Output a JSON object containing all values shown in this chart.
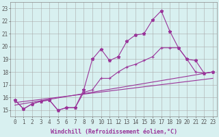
{
  "x_values": [
    0,
    1,
    2,
    3,
    4,
    5,
    6,
    7,
    8,
    9,
    10,
    11,
    12,
    13,
    14,
    15,
    16,
    17,
    18,
    19,
    20,
    21,
    22,
    23
  ],
  "series1": [
    15.8,
    15.1,
    15.5,
    15.7,
    15.8,
    15.0,
    15.2,
    15.2,
    16.6,
    19.0,
    19.8,
    18.9,
    19.2,
    20.4,
    20.9,
    21.0,
    22.1,
    22.8,
    21.2,
    19.9,
    19.0,
    18.9,
    17.9,
    18.0
  ],
  "series2": [
    15.8,
    15.1,
    15.5,
    15.7,
    15.8,
    15.0,
    15.2,
    15.2,
    16.4,
    16.6,
    17.5,
    17.5,
    18.0,
    18.4,
    18.6,
    18.9,
    19.2,
    19.9,
    19.9,
    19.9,
    19.0,
    18.0,
    17.9,
    18.0
  ],
  "series3_x": [
    0,
    23
  ],
  "series3_y": [
    15.4,
    18.0
  ],
  "series4_x": [
    0,
    23
  ],
  "series4_y": [
    15.6,
    17.5
  ],
  "line_color": "#993399",
  "bg_color": "#d8f0f0",
  "plot_bg": "#d8f0f0",
  "grid_color": "#aaaaaa",
  "ylabel_ticks": [
    15,
    16,
    17,
    18,
    19,
    20,
    21,
    22,
    23
  ],
  "xlabel": "Windchill (Refroidissement éolien,°C)",
  "xlim": [
    -0.5,
    23.5
  ],
  "ylim": [
    14.5,
    23.5
  ],
  "tick_fontsize": 5.5,
  "label_fontsize": 6.0
}
